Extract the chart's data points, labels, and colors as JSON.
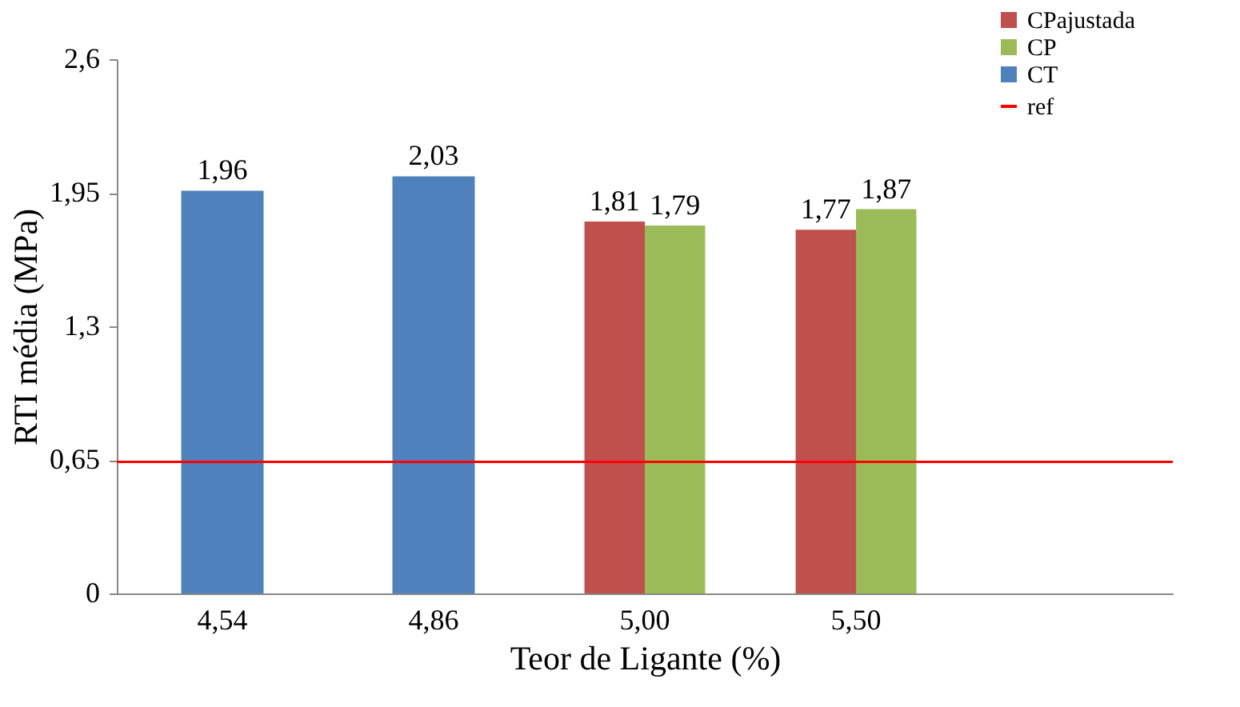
{
  "chart_data": {
    "type": "bar",
    "xlabel": "Teor de Ligante (%)",
    "ylabel": "RTI média (MPa)",
    "categories": [
      "4,54",
      "4,86",
      "5,00",
      "5,50",
      null
    ],
    "series": [
      {
        "name": "CPajustada",
        "color": "#c0504d",
        "values": [
          null,
          null,
          1.81,
          1.77,
          null
        ],
        "value_labels": [
          null,
          null,
          "1,81",
          "1,77",
          null
        ]
      },
      {
        "name": "CP",
        "color": "#9bbb59",
        "values": [
          null,
          null,
          1.79,
          1.87,
          null
        ],
        "value_labels": [
          null,
          null,
          "1,79",
          "1,87",
          null
        ]
      },
      {
        "name": "CT",
        "color": "#4f81bd",
        "values": [
          1.96,
          2.03,
          null,
          null,
          null
        ],
        "value_labels": [
          "1,96",
          "2,03",
          null,
          null,
          null
        ]
      }
    ],
    "ylim": [
      0,
      2.6
    ],
    "yticks": [
      {
        "value": 0,
        "label": "0"
      },
      {
        "value": 0.65,
        "label": "0,65"
      },
      {
        "value": 1.3,
        "label": "1,3"
      },
      {
        "value": 1.95,
        "label": "1,95"
      },
      {
        "value": 2.6,
        "label": "2,6"
      }
    ],
    "ref_lines": [
      {
        "axis": "y",
        "value": 0.64,
        "label": "ref",
        "color": "#ff0000"
      }
    ],
    "grid": false,
    "legend": "top right"
  }
}
